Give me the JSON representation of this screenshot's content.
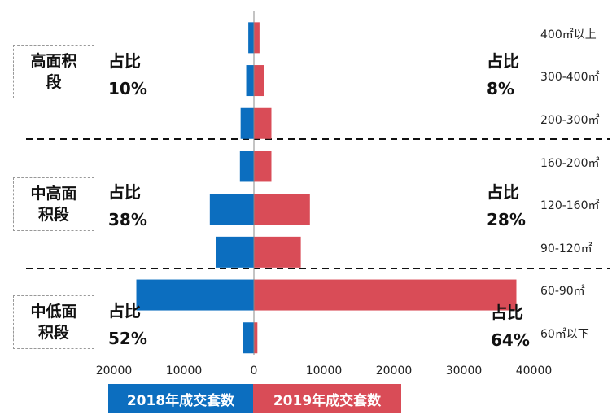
{
  "colors": {
    "y2018": "#0C6EBF",
    "y2019": "#D94C57"
  },
  "segments": [
    {
      "name": "高面积段",
      "share_2018": "占比",
      "share_2018_value": "10%",
      "share_2019": "占比",
      "share_2019_value": "8%"
    },
    {
      "name": "中高面积段",
      "share_2018": "占比",
      "share_2018_value": "38%",
      "share_2019": "占比",
      "share_2019_value": "28%"
    },
    {
      "name": "中低面积段",
      "share_2018": "占比",
      "share_2018_value": "52%",
      "share_2019": "占比",
      "share_2019_value": "64%"
    }
  ],
  "legend": {
    "left": "2018年成交套数",
    "right": "2019年成交套数"
  },
  "chart_data": {
    "type": "bar",
    "orientation": "horizontal-diverging",
    "categories": [
      "400㎡以上",
      "300-400㎡",
      "200-300㎡",
      "160-200㎡",
      "120-160㎡",
      "90-120㎡",
      "60-90㎡",
      "60㎡以下"
    ],
    "series": [
      {
        "name": "2018年成交套数",
        "side": "left",
        "values": [
          800,
          1100,
          1900,
          2000,
          6300,
          5400,
          16800,
          1600
        ]
      },
      {
        "name": "2019年成交套数",
        "side": "right",
        "values": [
          800,
          1400,
          2500,
          2500,
          8000,
          6700,
          37500,
          500
        ]
      }
    ],
    "xaxis": {
      "ticks": [
        "20000",
        "10000",
        "0",
        "10000",
        "20000",
        "30000",
        "40000"
      ]
    },
    "xlim_left": [
      0,
      20000
    ],
    "xlim_right": [
      0,
      40000
    ],
    "grid": false
  }
}
